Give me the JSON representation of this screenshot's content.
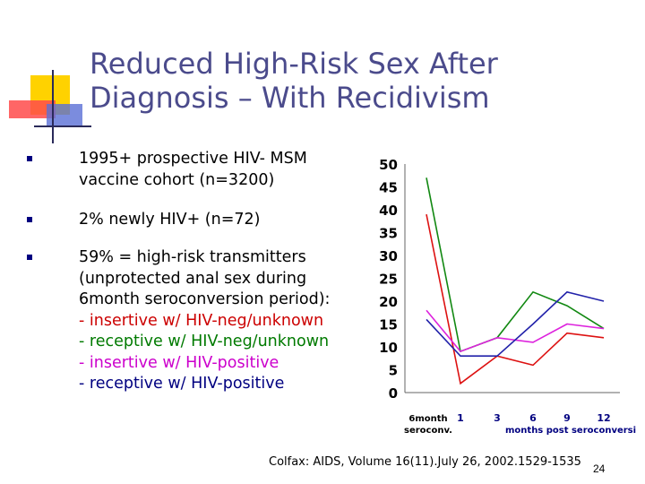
{
  "slide": {
    "title_line1": "Reduced High-Risk Sex After",
    "title_line2": "Diagnosis – With Recidivism",
    "page_number": "24",
    "citation": "Colfax: AIDS, Volume 16(11).July 26, 2002.1529-1535"
  },
  "bullets": [
    {
      "lines": [
        "1995+ prospective HIV- MSM",
        "vaccine cohort (n=3200)"
      ]
    },
    {
      "lines": [
        "2% newly HIV+ (n=72)"
      ]
    },
    {
      "lines": [
        "59% = high-risk transmitters",
        "(unprotected anal sex during",
        "6month seroconversion period):"
      ],
      "sub": [
        {
          "text": "- insertive w/ HIV-neg/unknown",
          "color": "#cc0000"
        },
        {
          "text": "- receptive w/ HIV-neg/unknown",
          "color": "#007a00"
        },
        {
          "text": "- insertive w/ HIV-positive",
          "color": "#cc00cc"
        },
        {
          "text": "- receptive w/ HIV-positive",
          "color": "#000080"
        }
      ]
    }
  ],
  "chart_data": {
    "type": "line",
    "yticks": [
      "50",
      "45",
      "40",
      "35",
      "30",
      "25",
      "20",
      "15",
      "10",
      "5",
      "0"
    ],
    "ylim": [
      0,
      50
    ],
    "x": [
      "6month seroconv.",
      "1",
      "3",
      "6",
      "9",
      "12"
    ],
    "xlabel_line1": "6month",
    "xlabel_line2": "seroconv.",
    "xlabel_right": "months post seroconversion",
    "series": [
      {
        "name": "insertive w/ HIV-neg/unknown",
        "color": "#dd1111",
        "values": [
          39,
          2,
          8,
          6,
          13,
          12
        ]
      },
      {
        "name": "receptive w/ HIV-neg/unknown",
        "color": "#118811",
        "values": [
          47,
          9,
          12,
          22,
          19,
          14
        ]
      },
      {
        "name": "insertive w/ HIV-positive",
        "color": "#dd22dd",
        "values": [
          18,
          9,
          12,
          11,
          15,
          14
        ]
      },
      {
        "name": "receptive w/ HIV-positive",
        "color": "#2222aa",
        "values": [
          16,
          8,
          8,
          15,
          22,
          20
        ]
      }
    ]
  }
}
